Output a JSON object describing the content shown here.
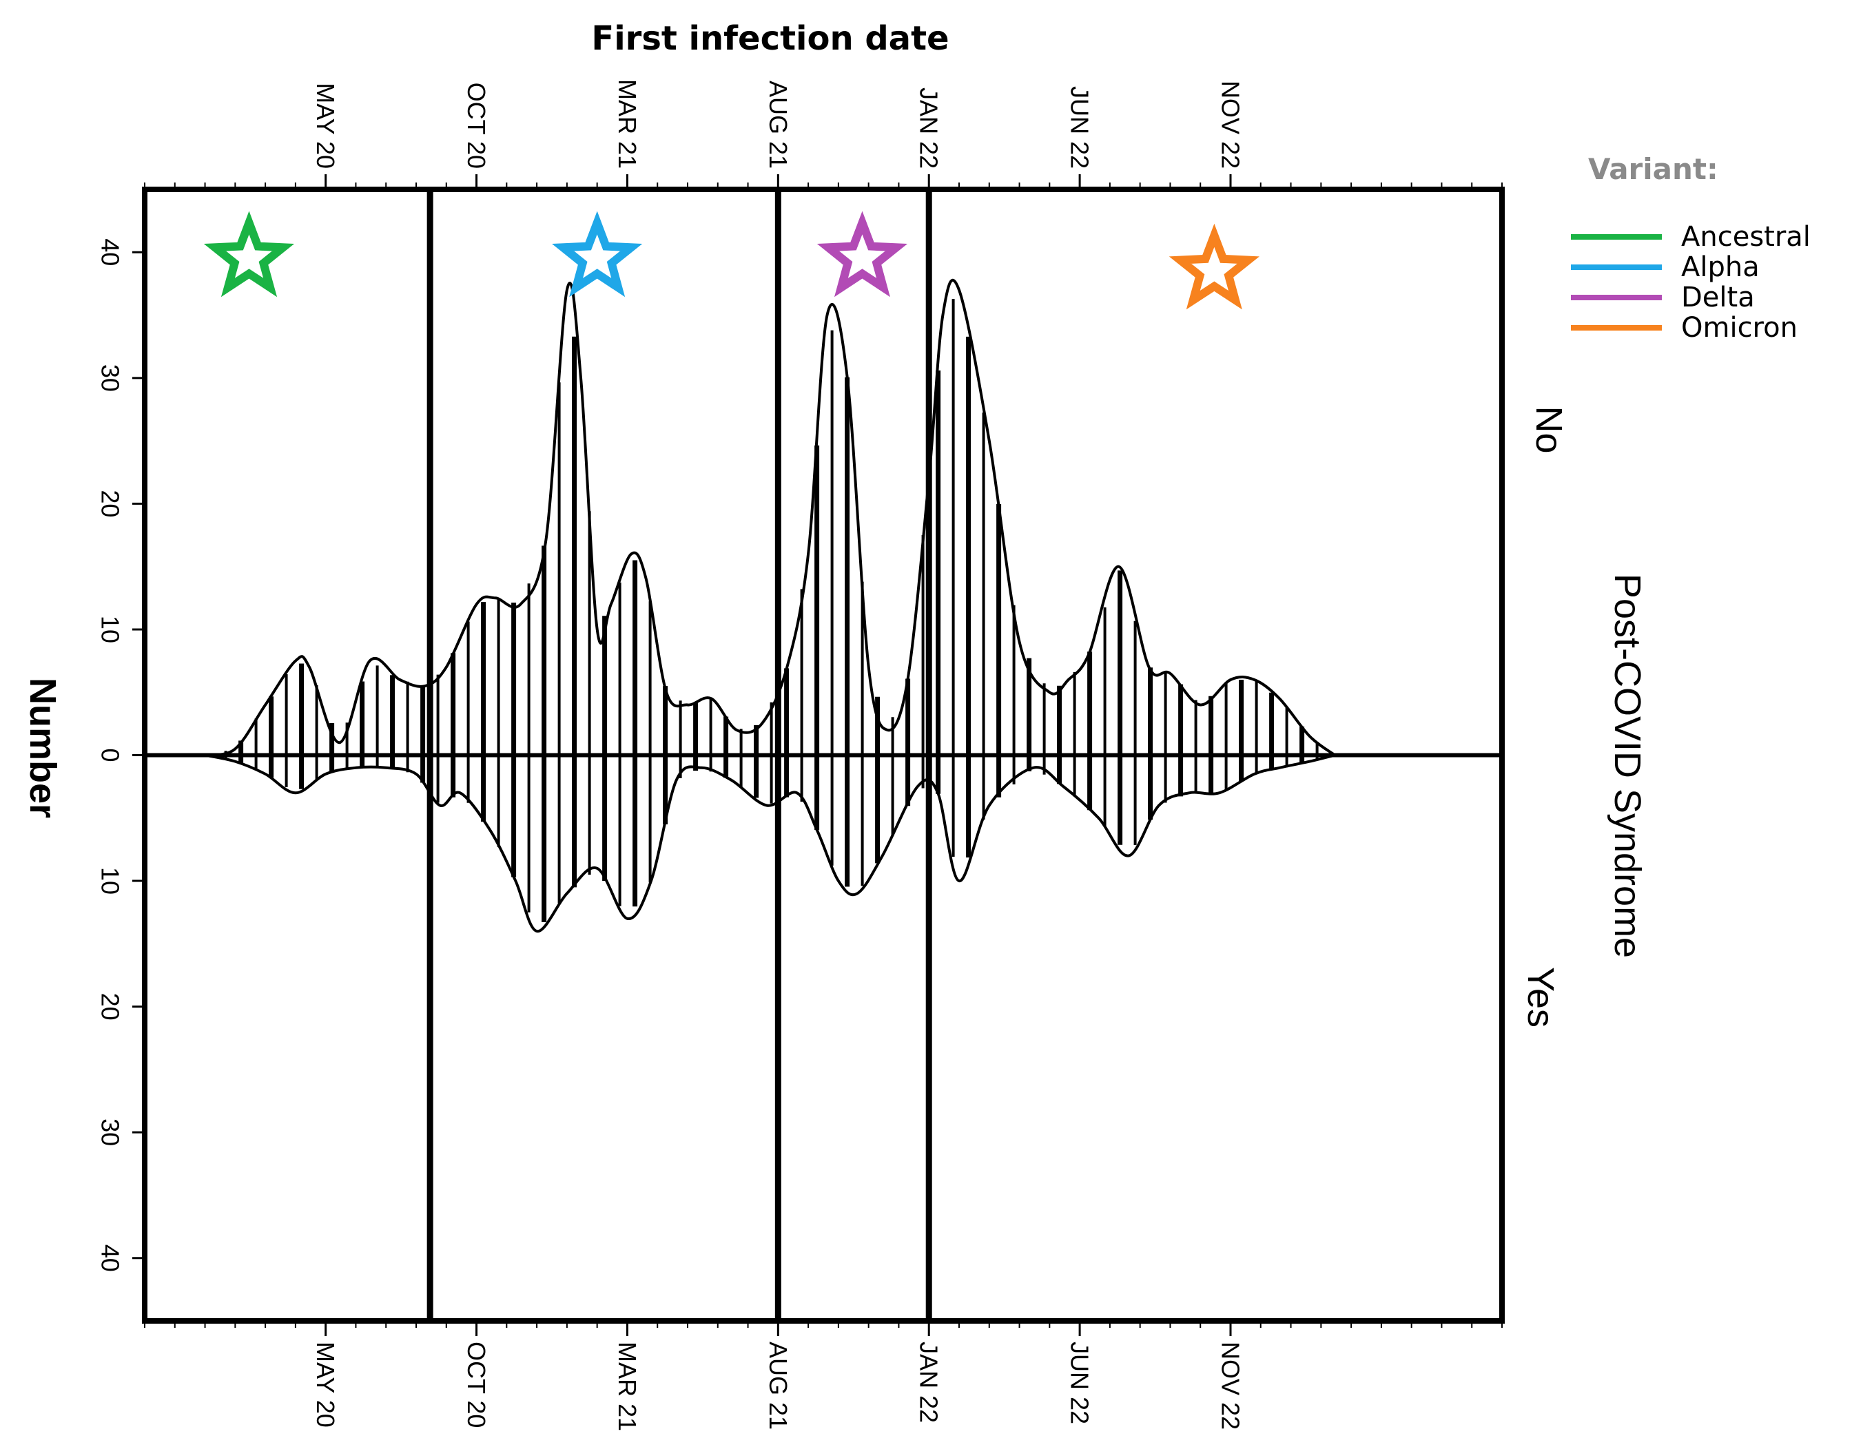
{
  "chart_data": {
    "type": "area",
    "title": "First infection date",
    "ylabel": "Number",
    "right_label": "Post-COVID Syndrome",
    "group_labels": {
      "top": "No",
      "bottom": "Yes"
    },
    "ylim": [
      -45,
      45
    ],
    "yticks": [
      {
        "value": 40,
        "label": "40"
      },
      {
        "value": 30,
        "label": "30"
      },
      {
        "value": 20,
        "label": "20"
      },
      {
        "value": 10,
        "label": "10"
      },
      {
        "value": 0,
        "label": "0"
      },
      {
        "value": -10,
        "label": "10"
      },
      {
        "value": -20,
        "label": "20"
      },
      {
        "value": -30,
        "label": "30"
      },
      {
        "value": -40,
        "label": "40"
      }
    ],
    "xlim": [
      "2019-11",
      "2023-08"
    ],
    "xticks": [
      {
        "value": "2020-05",
        "label": "MAY 20"
      },
      {
        "value": "2020-10",
        "label": "OCT 20"
      },
      {
        "value": "2021-03",
        "label": "MAR 21"
      },
      {
        "value": "2021-08",
        "label": "AUG 21"
      },
      {
        "value": "2022-01",
        "label": "JAN 22"
      },
      {
        "value": "2022-06",
        "label": "JUN 22"
      },
      {
        "value": "2022-11",
        "label": "NOV 22"
      }
    ],
    "variant_boundaries": [
      "2020-08-15",
      "2021-08-01",
      "2022-01-01"
    ],
    "grid": false,
    "legend": {
      "title": "Variant:",
      "placement": "right",
      "entries": [
        {
          "name": "Ancestral",
          "color": "#1ab344"
        },
        {
          "name": "Alpha",
          "color": "#1fa7e8"
        },
        {
          "name": "Delta",
          "color": "#b24bb5"
        },
        {
          "name": "Omicron",
          "color": "#f7821e"
        }
      ]
    },
    "variant_stars": [
      {
        "variant": "Ancestral",
        "date": "2020-02-15",
        "y": 39.5,
        "color": "#1ab344",
        "icon": "star-icon"
      },
      {
        "variant": "Alpha",
        "date": "2021-02-01",
        "y": 39.5,
        "color": "#1fa7e8",
        "icon": "star-icon"
      },
      {
        "variant": "Delta",
        "date": "2021-10-25",
        "y": 39.5,
        "color": "#b24bb5",
        "icon": "star-icon"
      },
      {
        "variant": "Omicron",
        "date": "2022-10-15",
        "y": 38.5,
        "color": "#f7821e",
        "icon": "star-icon"
      }
    ],
    "series": [
      {
        "name": "No",
        "points": [
          [
            "2020-01-01",
            0
          ],
          [
            "2020-02-01",
            0.5
          ],
          [
            "2020-03-01",
            4
          ],
          [
            "2020-04-01",
            7.5
          ],
          [
            "2020-04-15",
            7
          ],
          [
            "2020-05-15",
            1
          ],
          [
            "2020-06-15",
            7.5
          ],
          [
            "2020-07-15",
            6
          ],
          [
            "2020-08-10",
            5.5
          ],
          [
            "2020-09-01",
            7
          ],
          [
            "2020-10-01",
            12
          ],
          [
            "2020-10-20",
            12.5
          ],
          [
            "2020-11-15",
            12
          ],
          [
            "2020-12-10",
            17
          ],
          [
            "2021-01-01",
            37
          ],
          [
            "2021-01-15",
            30
          ],
          [
            "2021-02-01",
            10
          ],
          [
            "2021-02-15",
            12
          ],
          [
            "2021-03-05",
            16
          ],
          [
            "2021-03-20",
            14
          ],
          [
            "2021-04-10",
            5
          ],
          [
            "2021-05-01",
            4
          ],
          [
            "2021-05-25",
            4.5
          ],
          [
            "2021-06-20",
            2
          ],
          [
            "2021-07-15",
            2.5
          ],
          [
            "2021-08-10",
            7
          ],
          [
            "2021-09-01",
            16
          ],
          [
            "2021-09-20",
            35
          ],
          [
            "2021-10-10",
            30
          ],
          [
            "2021-11-01",
            7
          ],
          [
            "2021-11-20",
            2
          ],
          [
            "2021-12-10",
            6
          ],
          [
            "2022-01-01",
            22
          ],
          [
            "2022-01-15",
            35
          ],
          [
            "2022-02-01",
            37
          ],
          [
            "2022-03-01",
            25
          ],
          [
            "2022-04-01",
            9
          ],
          [
            "2022-05-01",
            5
          ],
          [
            "2022-05-20",
            6
          ],
          [
            "2022-06-10",
            8
          ],
          [
            "2022-07-10",
            15
          ],
          [
            "2022-08-10",
            7
          ],
          [
            "2022-09-01",
            6.5
          ],
          [
            "2022-10-01",
            4
          ],
          [
            "2022-11-01",
            6
          ],
          [
            "2022-11-25",
            6
          ],
          [
            "2022-12-20",
            4.5
          ],
          [
            "2023-01-20",
            1.5
          ],
          [
            "2023-02-15",
            0
          ]
        ]
      },
      {
        "name": "Yes",
        "points": [
          [
            "2020-01-01",
            0
          ],
          [
            "2020-02-01",
            -0.5
          ],
          [
            "2020-03-01",
            -1.5
          ],
          [
            "2020-04-01",
            -3
          ],
          [
            "2020-05-01",
            -1.5
          ],
          [
            "2020-06-01",
            -1
          ],
          [
            "2020-07-01",
            -1
          ],
          [
            "2020-08-01",
            -1.5
          ],
          [
            "2020-08-25",
            -4
          ],
          [
            "2020-09-15",
            -3
          ],
          [
            "2020-10-15",
            -6
          ],
          [
            "2020-11-10",
            -10
          ],
          [
            "2020-12-01",
            -14
          ],
          [
            "2021-01-01",
            -11
          ],
          [
            "2021-02-01",
            -9
          ],
          [
            "2021-03-01",
            -13
          ],
          [
            "2021-03-25",
            -10
          ],
          [
            "2021-04-20",
            -2
          ],
          [
            "2021-05-15",
            -1
          ],
          [
            "2021-06-15",
            -2
          ],
          [
            "2021-07-20",
            -4
          ],
          [
            "2021-08-20",
            -3
          ],
          [
            "2021-09-10",
            -6
          ],
          [
            "2021-10-01",
            -10
          ],
          [
            "2021-10-20",
            -11
          ],
          [
            "2021-11-15",
            -8
          ],
          [
            "2021-12-20",
            -2.5
          ],
          [
            "2022-01-10",
            -3
          ],
          [
            "2022-02-01",
            -10
          ],
          [
            "2022-03-01",
            -4
          ],
          [
            "2022-04-15",
            -1
          ],
          [
            "2022-05-15",
            -2.5
          ],
          [
            "2022-06-20",
            -5
          ],
          [
            "2022-07-20",
            -8
          ],
          [
            "2022-08-20",
            -4
          ],
          [
            "2022-09-20",
            -3
          ],
          [
            "2022-10-20",
            -3
          ],
          [
            "2022-11-25",
            -1.5
          ],
          [
            "2022-12-20",
            -1
          ],
          [
            "2023-01-20",
            -0.5
          ],
          [
            "2023-02-15",
            0
          ]
        ]
      }
    ]
  }
}
